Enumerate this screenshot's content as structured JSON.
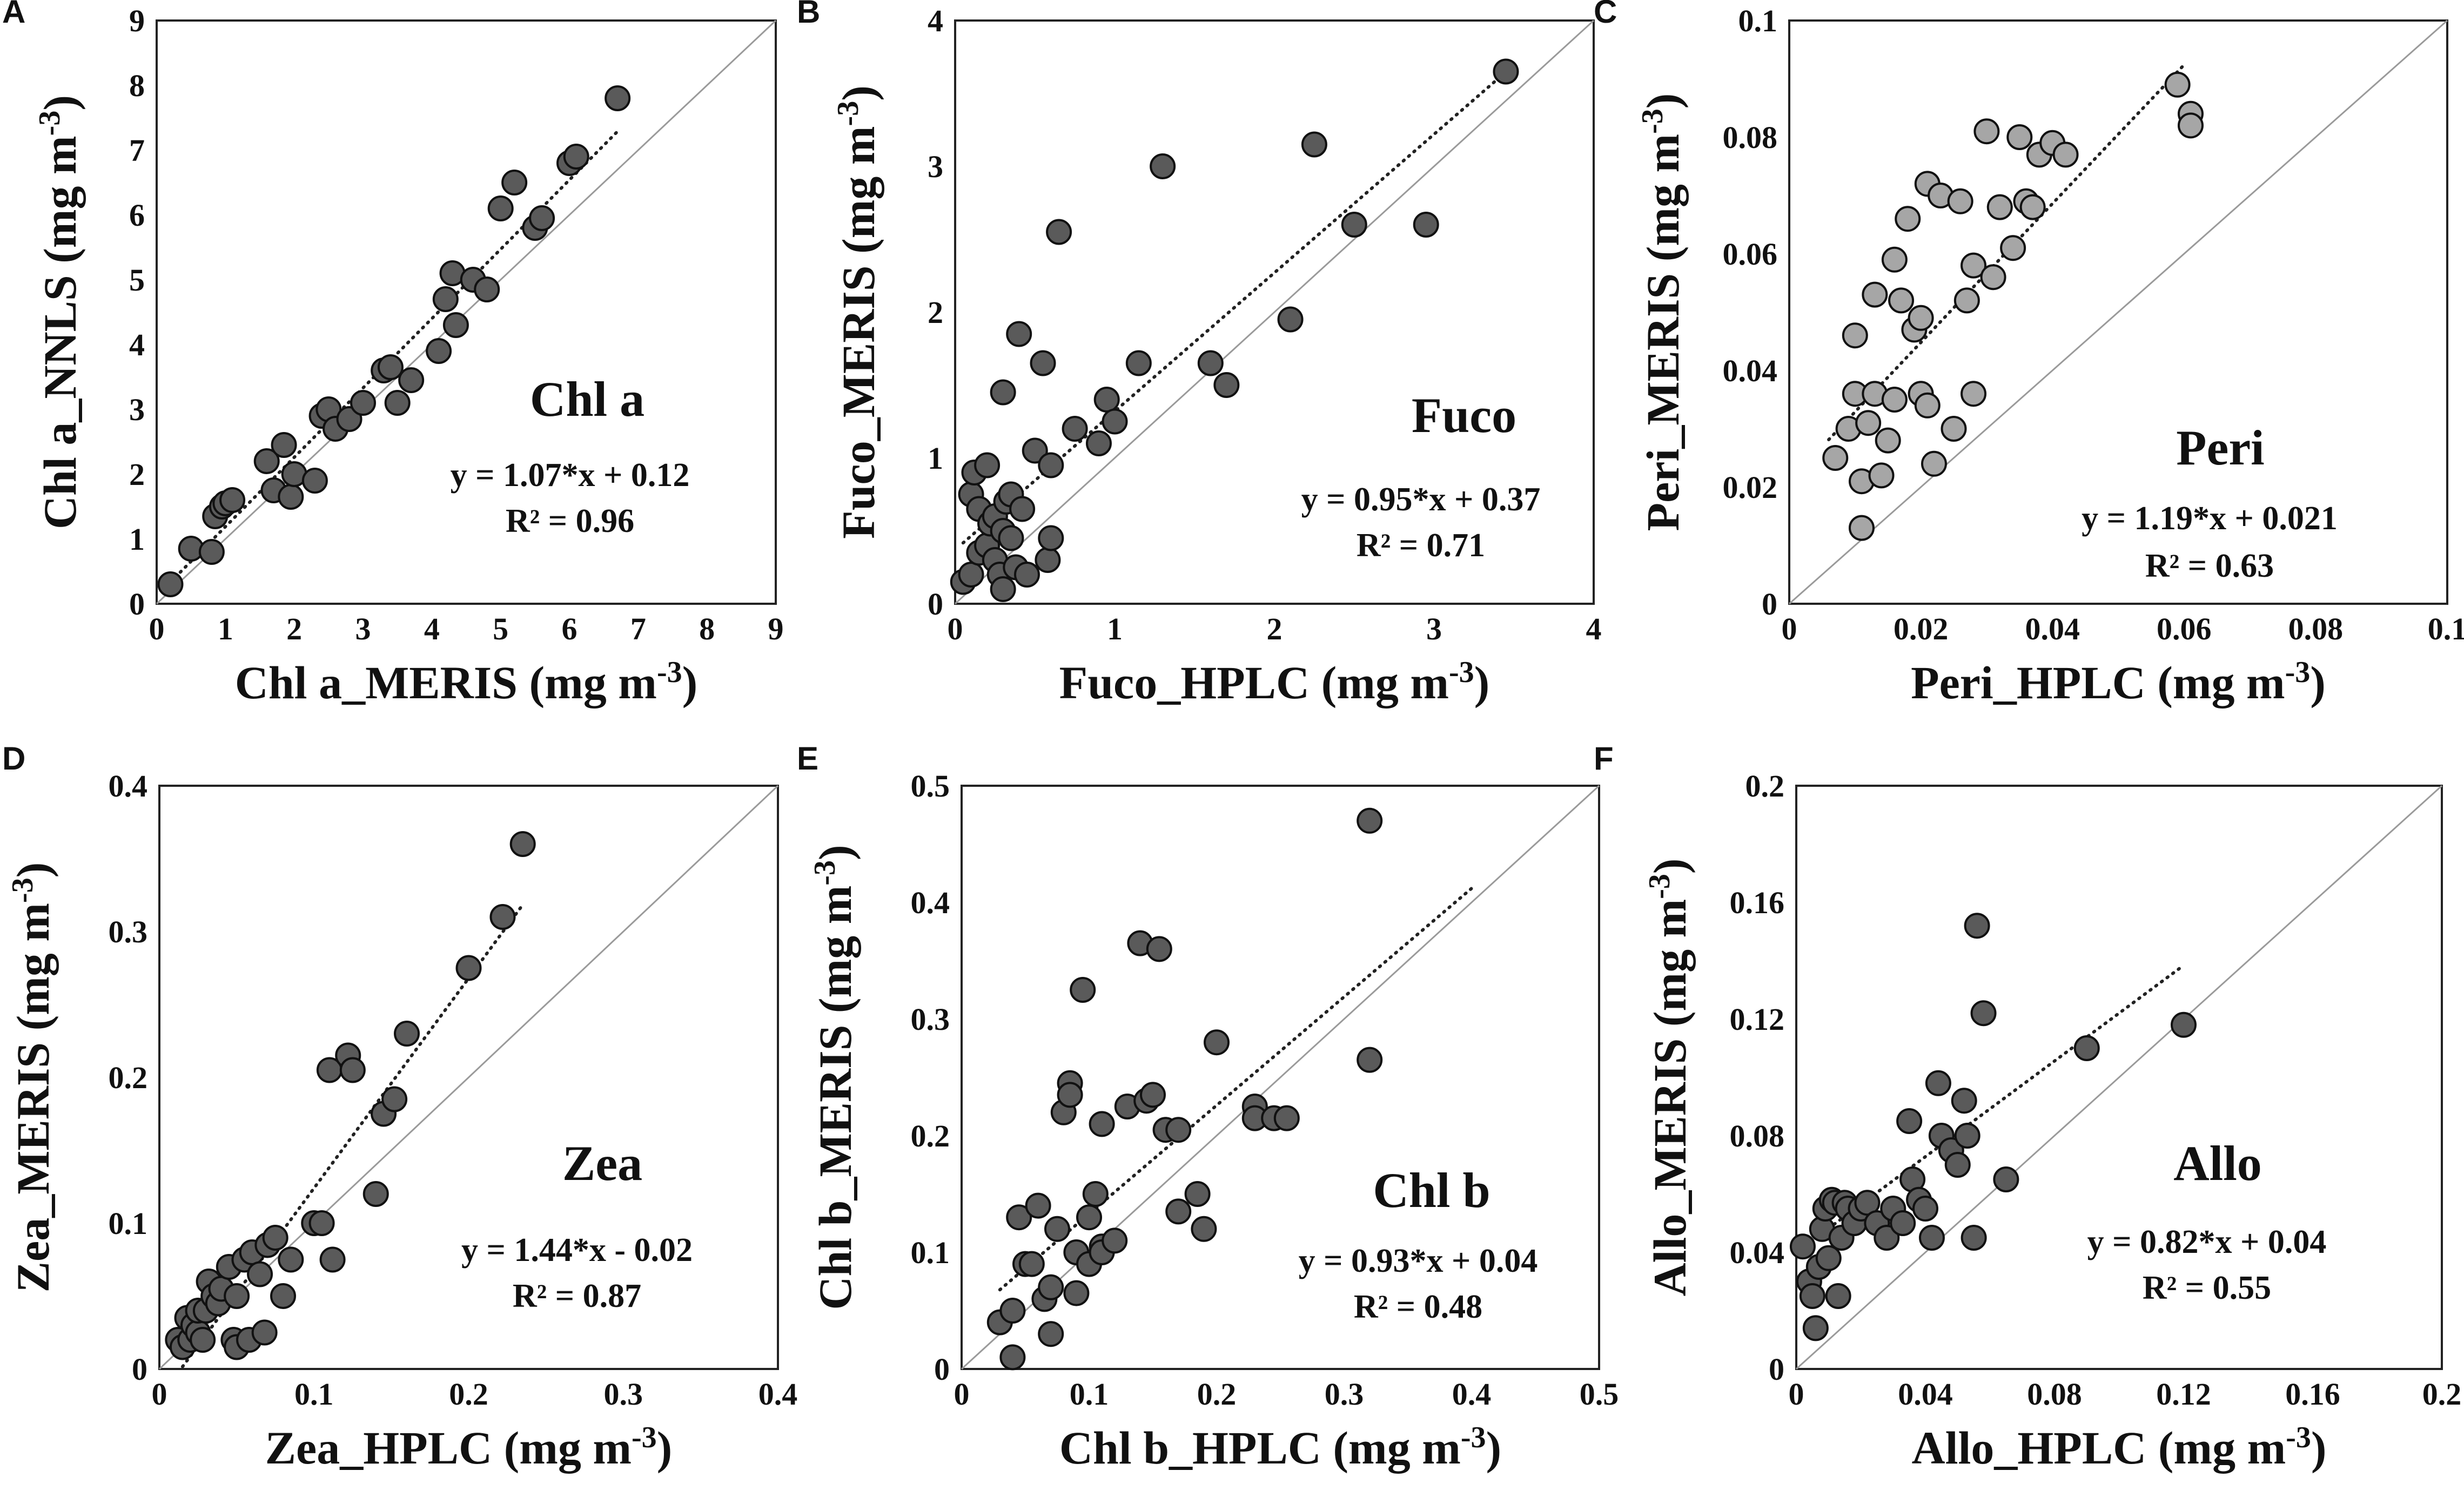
{
  "chart_data": [
    {
      "id": "A",
      "type": "scatter",
      "xlabel": "Chl a_MERIS (mg m⁻³)",
      "ylabel": "Chl a_NNLS (mg m⁻³)",
      "xlim": [
        0,
        9
      ],
      "ylim": [
        0,
        9
      ],
      "xticks": [
        "0",
        "1",
        "2",
        "3",
        "4",
        "5",
        "6",
        "7",
        "8",
        "9"
      ],
      "yticks": [
        "0",
        "1",
        "2",
        "3",
        "4",
        "5",
        "6",
        "7",
        "8",
        "9"
      ],
      "pigment": "Chl a",
      "equation": "y = 1.07*x + 0.12",
      "r2": "R² = 0.96",
      "slope": 1.07,
      "intercept": 0.12,
      "fit_range": [
        0.2,
        6.7
      ],
      "marker_color": "#5a5a5a",
      "x": [
        0.2,
        0.5,
        0.8,
        0.85,
        0.95,
        1.0,
        1.1,
        1.6,
        1.7,
        1.85,
        1.95,
        2.0,
        2.3,
        2.4,
        2.5,
        2.6,
        2.8,
        3.0,
        3.3,
        3.4,
        3.5,
        3.7,
        4.1,
        4.2,
        4.3,
        4.35,
        4.6,
        4.8,
        5.0,
        5.2,
        5.5,
        5.6,
        6.0,
        6.1,
        6.7
      ],
      "y": [
        0.3,
        0.85,
        0.8,
        1.35,
        1.5,
        1.55,
        1.6,
        2.2,
        1.75,
        2.45,
        1.65,
        2.0,
        1.9,
        2.9,
        3.0,
        2.7,
        2.85,
        3.1,
        3.6,
        3.65,
        3.1,
        3.45,
        3.9,
        4.7,
        5.1,
        4.3,
        5.0,
        4.85,
        6.1,
        6.5,
        5.8,
        5.95,
        6.8,
        6.9,
        7.8
      ]
    },
    {
      "id": "B",
      "type": "scatter",
      "xlabel": "Fuco_HPLC (mg m⁻³)",
      "ylabel": "Fuco_MERIS (mg m⁻³)",
      "xlim": [
        0,
        4
      ],
      "ylim": [
        0,
        4
      ],
      "xticks": [
        "0",
        "1",
        "2",
        "3",
        "4"
      ],
      "yticks": [
        "0",
        "1",
        "2",
        "3",
        "4"
      ],
      "pigment": "Fuco",
      "equation": "y = 0.95*x + 0.37",
      "r2": "R² = 0.71",
      "slope": 0.95,
      "intercept": 0.37,
      "fit_range": [
        0.05,
        3.45
      ],
      "marker_color": "#5a5a5a",
      "x": [
        0.05,
        0.1,
        0.1,
        0.12,
        0.15,
        0.15,
        0.2,
        0.2,
        0.22,
        0.25,
        0.25,
        0.28,
        0.3,
        0.3,
        0.3,
        0.32,
        0.35,
        0.35,
        0.38,
        0.4,
        0.42,
        0.45,
        0.5,
        0.55,
        0.58,
        0.6,
        0.6,
        0.65,
        0.75,
        0.9,
        0.95,
        1.0,
        1.15,
        1.3,
        1.6,
        1.7,
        2.1,
        2.25,
        2.5,
        2.95,
        3.45
      ],
      "y": [
        0.15,
        0.2,
        0.75,
        0.9,
        0.35,
        0.65,
        0.4,
        0.95,
        0.55,
        0.3,
        0.6,
        0.2,
        0.1,
        0.5,
        1.45,
        0.7,
        0.45,
        0.75,
        0.25,
        1.85,
        0.65,
        0.2,
        1.05,
        1.65,
        0.3,
        0.45,
        0.95,
        2.55,
        1.2,
        1.1,
        1.4,
        1.25,
        1.65,
        3.0,
        1.65,
        1.5,
        1.95,
        3.15,
        2.6,
        2.6,
        3.65
      ]
    },
    {
      "id": "C",
      "type": "scatter",
      "xlabel": "Peri_HPLC (mg m⁻³)",
      "ylabel": "Peri_MERIS (mg m⁻³)",
      "xlim": [
        0,
        0.1
      ],
      "ylim": [
        0,
        0.1
      ],
      "xticks": [
        "0",
        "0.02",
        "0.04",
        "0.06",
        "0.08",
        "0.1"
      ],
      "yticks": [
        "0",
        "0.02",
        "0.04",
        "0.06",
        "0.08",
        "0.1"
      ],
      "pigment": "Peri",
      "equation": "y = 1.19*x + 0.021",
      "r2": "R² = 0.63",
      "slope": 1.19,
      "intercept": 0.021,
      "fit_range": [
        0.006,
        0.06
      ],
      "marker_color": "#a6a6a6",
      "x": [
        0.007,
        0.009,
        0.01,
        0.01,
        0.011,
        0.011,
        0.012,
        0.013,
        0.013,
        0.014,
        0.015,
        0.016,
        0.016,
        0.017,
        0.018,
        0.019,
        0.02,
        0.02,
        0.021,
        0.021,
        0.022,
        0.023,
        0.025,
        0.026,
        0.027,
        0.028,
        0.028,
        0.03,
        0.031,
        0.032,
        0.034,
        0.035,
        0.036,
        0.037,
        0.038,
        0.04,
        0.042,
        0.059,
        0.061,
        0.061
      ],
      "y": [
        0.025,
        0.03,
        0.046,
        0.036,
        0.013,
        0.021,
        0.031,
        0.036,
        0.053,
        0.022,
        0.028,
        0.035,
        0.059,
        0.052,
        0.066,
        0.047,
        0.049,
        0.036,
        0.072,
        0.034,
        0.024,
        0.07,
        0.03,
        0.069,
        0.052,
        0.058,
        0.036,
        0.081,
        0.056,
        0.068,
        0.061,
        0.08,
        0.069,
        0.068,
        0.077,
        0.079,
        0.077,
        0.089,
        0.084,
        0.082
      ]
    },
    {
      "id": "D",
      "type": "scatter",
      "xlabel": "Zea_HPLC (mg m⁻³)",
      "ylabel": "Zea_MERIS (mg m⁻³)",
      "xlim": [
        0,
        0.4
      ],
      "ylim": [
        0,
        0.4
      ],
      "xticks": [
        "0",
        "0.1",
        "0.2",
        "0.3",
        "0.4"
      ],
      "yticks": [
        "0",
        "0.1",
        "0.2",
        "0.3",
        "0.4"
      ],
      "pigment": "Zea",
      "equation": "y = 1.44*x - 0.02",
      "r2": "R² = 0.87",
      "slope": 1.44,
      "intercept": -0.02,
      "fit_range": [
        0.015,
        0.235
      ],
      "marker_color": "#5a5a5a",
      "x": [
        0.012,
        0.015,
        0.018,
        0.02,
        0.022,
        0.025,
        0.025,
        0.028,
        0.03,
        0.032,
        0.035,
        0.038,
        0.04,
        0.045,
        0.048,
        0.05,
        0.05,
        0.055,
        0.058,
        0.06,
        0.065,
        0.068,
        0.07,
        0.075,
        0.08,
        0.085,
        0.1,
        0.105,
        0.11,
        0.112,
        0.122,
        0.125,
        0.14,
        0.145,
        0.152,
        0.16,
        0.2,
        0.222,
        0.235
      ],
      "y": [
        0.02,
        0.015,
        0.035,
        0.02,
        0.03,
        0.025,
        0.04,
        0.02,
        0.04,
        0.06,
        0.05,
        0.045,
        0.055,
        0.07,
        0.02,
        0.015,
        0.05,
        0.075,
        0.02,
        0.08,
        0.065,
        0.025,
        0.085,
        0.09,
        0.05,
        0.075,
        0.1,
        0.1,
        0.205,
        0.075,
        0.215,
        0.205,
        0.12,
        0.175,
        0.185,
        0.23,
        0.275,
        0.31,
        0.36
      ]
    },
    {
      "id": "E",
      "type": "scatter",
      "xlabel": "Chl b_HPLC (mg m⁻³)",
      "ylabel": "Chl b_MERIS (mg m⁻³)",
      "xlim": [
        0,
        0.5
      ],
      "ylim": [
        0,
        0.5
      ],
      "xticks": [
        "0",
        "0.1",
        "0.2",
        "0.3",
        "0.4",
        "0.5"
      ],
      "yticks": [
        "0",
        "0.1",
        "0.2",
        "0.3",
        "0.4",
        "0.5"
      ],
      "pigment": "Chl b",
      "equation": "y = 0.93*x + 0.04",
      "r2": "R² = 0.48",
      "slope": 0.93,
      "intercept": 0.04,
      "fit_range": [
        0.03,
        0.4
      ],
      "marker_color": "#5a5a5a",
      "x": [
        0.03,
        0.04,
        0.04,
        0.045,
        0.05,
        0.055,
        0.06,
        0.065,
        0.07,
        0.07,
        0.075,
        0.08,
        0.085,
        0.085,
        0.09,
        0.09,
        0.095,
        0.1,
        0.1,
        0.105,
        0.11,
        0.11,
        0.11,
        0.12,
        0.13,
        0.14,
        0.145,
        0.15,
        0.155,
        0.16,
        0.17,
        0.17,
        0.185,
        0.19,
        0.2,
        0.23,
        0.23,
        0.245,
        0.255,
        0.32,
        0.32
      ],
      "y": [
        0.04,
        0.05,
        0.01,
        0.13,
        0.09,
        0.09,
        0.14,
        0.06,
        0.07,
        0.03,
        0.12,
        0.22,
        0.245,
        0.235,
        0.1,
        0.065,
        0.325,
        0.09,
        0.13,
        0.15,
        0.21,
        0.105,
        0.1,
        0.11,
        0.225,
        0.365,
        0.23,
        0.235,
        0.36,
        0.205,
        0.135,
        0.205,
        0.15,
        0.12,
        0.28,
        0.225,
        0.215,
        0.215,
        0.215,
        0.265,
        0.47
      ]
    },
    {
      "id": "F",
      "type": "scatter",
      "xlabel": "Allo_HPLC (mg m⁻³)",
      "ylabel": "Allo_MERIS (mg m⁻³)",
      "xlim": [
        0,
        0.2
      ],
      "ylim": [
        0,
        0.2
      ],
      "xticks": [
        "0",
        "0.04",
        "0.08",
        "0.12",
        "0.16",
        "0.2"
      ],
      "yticks": [
        "0",
        "0.04",
        "0.08",
        "0.12",
        "0.16",
        "0.2"
      ],
      "pigment": "Allo",
      "equation": "y = 0.82*x + 0.04",
      "r2": "R² = 0.55",
      "slope": 0.82,
      "intercept": 0.04,
      "fit_range": [
        0.003,
        0.12
      ],
      "marker_color": "#5a5a5a",
      "x": [
        0.002,
        0.004,
        0.005,
        0.006,
        0.007,
        0.008,
        0.009,
        0.01,
        0.011,
        0.012,
        0.013,
        0.014,
        0.015,
        0.016,
        0.018,
        0.02,
        0.022,
        0.025,
        0.028,
        0.03,
        0.033,
        0.035,
        0.036,
        0.038,
        0.04,
        0.042,
        0.044,
        0.045,
        0.048,
        0.05,
        0.052,
        0.053,
        0.055,
        0.056,
        0.058,
        0.065,
        0.09,
        0.12
      ],
      "y": [
        0.042,
        0.03,
        0.025,
        0.014,
        0.035,
        0.048,
        0.055,
        0.038,
        0.058,
        0.057,
        0.025,
        0.045,
        0.057,
        0.055,
        0.05,
        0.055,
        0.057,
        0.05,
        0.045,
        0.055,
        0.05,
        0.085,
        0.065,
        0.058,
        0.055,
        0.045,
        0.098,
        0.08,
        0.075,
        0.07,
        0.092,
        0.08,
        0.045,
        0.152,
        0.122,
        0.065,
        0.11,
        0.118
      ]
    }
  ]
}
